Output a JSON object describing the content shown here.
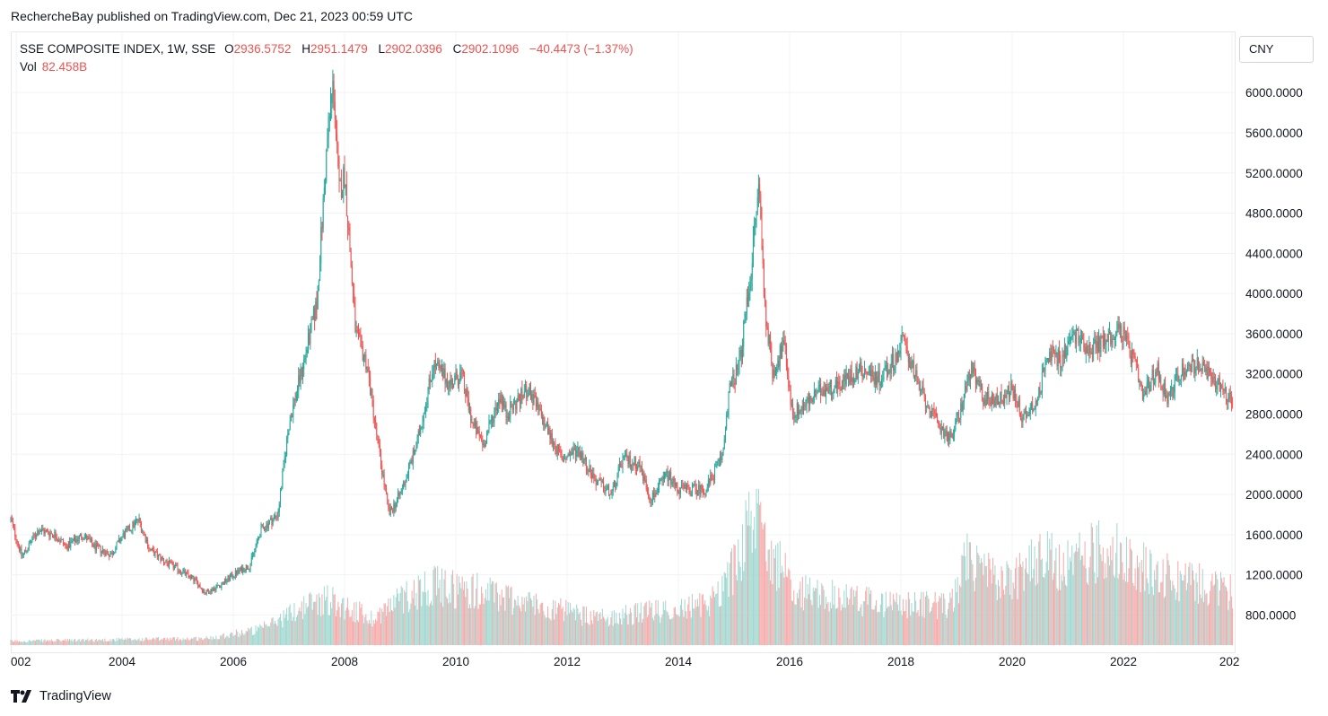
{
  "header": {
    "published_text": "RechercheBay published on TradingView.com, Dec 21, 2023 00:59 UTC"
  },
  "legend": {
    "symbol": "SSE COMPOSITE INDEX, 1W, SSE",
    "o_label": "O",
    "o_value": "2936.5752",
    "h_label": "H",
    "h_value": "2951.1479",
    "l_label": "L",
    "l_value": "2902.0396",
    "c_label": "C",
    "c_value": "2902.1096",
    "change": "−40.4473 (−1.37%)",
    "vol_label": "Vol",
    "vol_value": "82.458B"
  },
  "currency": "CNY",
  "footer": {
    "brand": "TradingView"
  },
  "colors": {
    "up": "#26a69a",
    "down": "#ef5350",
    "vol_up": "#9fd6cf",
    "vol_down": "#f5a8a7",
    "grid": "#f0f3fa"
  },
  "chart_data": {
    "type": "candlestick",
    "y_ticks": [
      "6000.0000",
      "5600.0000",
      "5200.0000",
      "4800.0000",
      "4400.0000",
      "4000.0000",
      "3600.0000",
      "3200.0000",
      "2800.0000",
      "2400.0000",
      "2000.0000",
      "1600.0000",
      "1200.0000",
      "800.0000"
    ],
    "x_ticks": [
      "002",
      "2004",
      "2006",
      "2008",
      "2010",
      "2012",
      "2014",
      "2016",
      "2018",
      "2020",
      "2022",
      "202"
    ],
    "ylim": [
      500,
      6600
    ],
    "xlim": [
      2002.0,
      2024.0
    ],
    "price_path": [
      [
        2002.0,
        1750
      ],
      [
        2002.2,
        1380
      ],
      [
        2002.5,
        1650
      ],
      [
        2002.8,
        1600
      ],
      [
        2003.0,
        1480
      ],
      [
        2003.3,
        1600
      ],
      [
        2003.5,
        1480
      ],
      [
        2003.8,
        1400
      ],
      [
        2004.0,
        1580
      ],
      [
        2004.3,
        1750
      ],
      [
        2004.5,
        1450
      ],
      [
        2004.8,
        1320
      ],
      [
        2005.0,
        1260
      ],
      [
        2005.3,
        1150
      ],
      [
        2005.5,
        1020
      ],
      [
        2005.8,
        1110
      ],
      [
        2006.0,
        1200
      ],
      [
        2006.3,
        1300
      ],
      [
        2006.5,
        1650
      ],
      [
        2006.8,
        1800
      ],
      [
        2007.0,
        2700
      ],
      [
        2007.3,
        3400
      ],
      [
        2007.5,
        3900
      ],
      [
        2007.7,
        5600
      ],
      [
        2007.8,
        6100
      ],
      [
        2007.9,
        5000
      ],
      [
        2008.0,
        5200
      ],
      [
        2008.2,
        3600
      ],
      [
        2008.4,
        3300
      ],
      [
        2008.6,
        2500
      ],
      [
        2008.8,
        1800
      ],
      [
        2008.9,
        1900
      ],
      [
        2009.0,
        2000
      ],
      [
        2009.3,
        2500
      ],
      [
        2009.6,
        3300
      ],
      [
        2009.9,
        3100
      ],
      [
        2010.1,
        3200
      ],
      [
        2010.3,
        2700
      ],
      [
        2010.5,
        2500
      ],
      [
        2010.8,
        3000
      ],
      [
        2010.9,
        2800
      ],
      [
        2011.3,
        3050
      ],
      [
        2011.6,
        2700
      ],
      [
        2011.9,
        2350
      ],
      [
        2012.2,
        2450
      ],
      [
        2012.5,
        2150
      ],
      [
        2012.8,
        2000
      ],
      [
        2013.0,
        2350
      ],
      [
        2013.3,
        2300
      ],
      [
        2013.5,
        1950
      ],
      [
        2013.8,
        2200
      ],
      [
        2014.0,
        2050
      ],
      [
        2014.3,
        2050
      ],
      [
        2014.5,
        2050
      ],
      [
        2014.8,
        2400
      ],
      [
        2014.9,
        3000
      ],
      [
        2015.1,
        3300
      ],
      [
        2015.3,
        4200
      ],
      [
        2015.45,
        5100
      ],
      [
        2015.55,
        3900
      ],
      [
        2015.7,
        3200
      ],
      [
        2015.9,
        3500
      ],
      [
        2016.05,
        2800
      ],
      [
        2016.3,
        2900
      ],
      [
        2016.6,
        3050
      ],
      [
        2016.9,
        3100
      ],
      [
        2017.3,
        3250
      ],
      [
        2017.6,
        3150
      ],
      [
        2017.9,
        3350
      ],
      [
        2018.05,
        3550
      ],
      [
        2018.3,
        3100
      ],
      [
        2018.6,
        2750
      ],
      [
        2018.9,
        2550
      ],
      [
        2019.1,
        2900
      ],
      [
        2019.25,
        3250
      ],
      [
        2019.5,
        2950
      ],
      [
        2019.8,
        2950
      ],
      [
        2020.0,
        3050
      ],
      [
        2020.2,
        2750
      ],
      [
        2020.5,
        3000
      ],
      [
        2020.6,
        3400
      ],
      [
        2020.9,
        3350
      ],
      [
        2021.1,
        3600
      ],
      [
        2021.4,
        3450
      ],
      [
        2021.7,
        3550
      ],
      [
        2021.95,
        3650
      ],
      [
        2022.2,
        3300
      ],
      [
        2022.35,
        2950
      ],
      [
        2022.6,
        3250
      ],
      [
        2022.8,
        2950
      ],
      [
        2023.0,
        3200
      ],
      [
        2023.3,
        3300
      ],
      [
        2023.6,
        3150
      ],
      [
        2023.8,
        3050
      ],
      [
        2023.97,
        2902
      ]
    ],
    "volume_path": [
      [
        2002.0,
        0.03
      ],
      [
        2005.5,
        0.05
      ],
      [
        2006.5,
        0.12
      ],
      [
        2007.3,
        0.3
      ],
      [
        2007.7,
        0.35
      ],
      [
        2008.5,
        0.2
      ],
      [
        2009.0,
        0.35
      ],
      [
        2009.5,
        0.45
      ],
      [
        2010.5,
        0.4
      ],
      [
        2011.5,
        0.3
      ],
      [
        2012.5,
        0.2
      ],
      [
        2013.5,
        0.25
      ],
      [
        2014.5,
        0.3
      ],
      [
        2014.9,
        0.5
      ],
      [
        2015.4,
        1.0
      ],
      [
        2015.8,
        0.6
      ],
      [
        2016.2,
        0.4
      ],
      [
        2017.0,
        0.35
      ],
      [
        2018.0,
        0.3
      ],
      [
        2018.9,
        0.3
      ],
      [
        2019.2,
        0.65
      ],
      [
        2019.8,
        0.45
      ],
      [
        2020.5,
        0.65
      ],
      [
        2021.0,
        0.6
      ],
      [
        2021.7,
        0.75
      ],
      [
        2022.2,
        0.6
      ],
      [
        2023.0,
        0.5
      ],
      [
        2023.97,
        0.4
      ]
    ]
  }
}
